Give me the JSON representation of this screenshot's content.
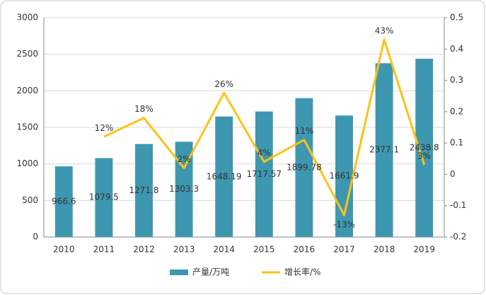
{
  "chart_data": {
    "type": "bar_line",
    "categories": [
      "2010",
      "2011",
      "2012",
      "2013",
      "2014",
      "2015",
      "2016",
      "2017",
      "2018",
      "2019"
    ],
    "series": [
      {
        "name": "产量/万吨",
        "type": "bar",
        "color": "#3e97b0",
        "values": [
          966.6,
          1079.5,
          1271.8,
          1303.3,
          1648.19,
          1717.57,
          1899.78,
          1661.9,
          2377.1,
          2438.8
        ]
      },
      {
        "name": "增长率/%",
        "type": "line",
        "axis": "y2",
        "color": "#fbc21a",
        "values": [
          null,
          0.12,
          0.18,
          0.02,
          0.26,
          0.04,
          0.11,
          -0.13,
          0.43,
          0.03
        ],
        "value_labels": [
          null,
          "12%",
          "18%",
          "2%",
          "26%",
          "4%",
          "11%",
          "-13%",
          "43%",
          "3%"
        ]
      }
    ],
    "ylim": [
      0,
      3000
    ],
    "yticks": [
      0,
      500,
      1000,
      1500,
      2000,
      2500,
      3000
    ],
    "y2lim": [
      -0.2,
      0.5
    ],
    "y2ticks": [
      -0.2,
      -0.1,
      0,
      0.1,
      0.2,
      0.3,
      0.4,
      0.5
    ],
    "grid": true,
    "legend": "bottom"
  }
}
